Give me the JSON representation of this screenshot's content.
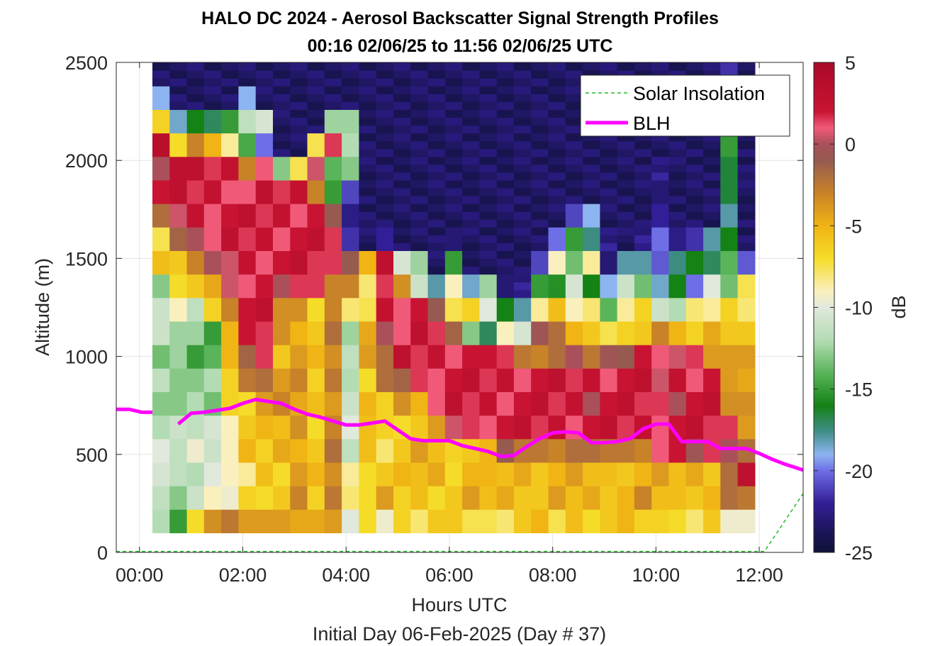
{
  "chart_data": {
    "type": "heatmap",
    "title": "HALO DC 2024 - Aerosol Backscatter Signal Strength Profiles",
    "subtitle": "00:16 02/06/25 to 11:56 02/06/25  UTC",
    "xlabel": "Hours UTC",
    "xlabel2": "Initial Day 06-Feb-2025 (Day # 37)",
    "ylabel": "Altitude (m)",
    "colorbar_label": "dB",
    "xlim": [
      -0.45,
      12.85
    ],
    "ylim": [
      0,
      2500
    ],
    "clim": [
      -25,
      5
    ],
    "x_ticks": [
      0,
      2,
      4,
      6,
      8,
      10,
      12
    ],
    "x_tick_labels": [
      "00:00",
      "02:00",
      "04:00",
      "06:00",
      "08:00",
      "10:00",
      "12:00"
    ],
    "y_ticks": [
      0,
      500,
      1000,
      1500,
      2000,
      2500
    ],
    "y_tick_labels": [
      "0",
      "500",
      "1000",
      "1500",
      "2000",
      "2500"
    ],
    "colorbar_ticks": [
      5,
      0,
      -5,
      -10,
      -15,
      -20,
      -25
    ],
    "colorbar_tick_labels": [
      "5",
      "0",
      "-5",
      "-10",
      "-15",
      "-20",
      "-25"
    ],
    "grid": true,
    "legend_placement": "top-right",
    "legend": [
      "Solar Insolation",
      "BLH"
    ],
    "colors": {
      "blh": "#ff00ff",
      "solar": "#22bb22"
    },
    "heatmap": {
      "x_start_hour": 0.25,
      "column_width_hours": 0.3333,
      "column_count": 35,
      "y_bottom_m": 100,
      "y_top_m": 2500,
      "row_height_m": 50,
      "note": "values in dB, column-wise profiles"
    },
    "columns": [
      {
        "hour": 0.42,
        "blh": 0,
        "q": [
          -11,
          -12,
          -10,
          -11,
          -12,
          -12,
          -12,
          -13,
          -12,
          -11,
          -12,
          -6,
          -7,
          -3,
          2,
          1,
          3,
          -6,
          -20,
          -24
        ]
      },
      {
        "hour": 0.75,
        "blh": 0,
        "q": [
          -15,
          -12,
          -12,
          -11,
          -12,
          -13,
          -12,
          -13,
          -12,
          -10,
          -7,
          -5,
          -2,
          1,
          2,
          3,
          -6,
          -19,
          -24,
          -24
        ]
      },
      {
        "hour": 1.08,
        "blh": 0,
        "q": [
          -8,
          -11,
          -11,
          -10,
          -11,
          -13,
          -13,
          -14,
          -13,
          -11,
          -7,
          -3,
          1,
          2,
          2,
          2,
          -3,
          -15,
          -24,
          -24
        ]
      },
      {
        "hour": 1.42,
        "blh": 0,
        "q": [
          -3,
          -10,
          -10,
          -10,
          -11,
          -13,
          -13,
          -14,
          -14,
          -7,
          -4,
          -1,
          1,
          2,
          2,
          2,
          -6,
          -17,
          -24,
          -24
        ]
      },
      {
        "hour": 1.75,
        "blh": 0,
        "q": [
          -3,
          -9,
          -10,
          -9,
          -8,
          -7,
          -6,
          -6,
          -5,
          -2,
          0,
          1,
          2,
          2,
          2,
          2,
          -8,
          -16,
          -24,
          -24
        ]
      },
      {
        "hour": 2.08,
        "blh": 0,
        "q": [
          -3,
          -7,
          -8,
          -6,
          -6,
          -6,
          -3,
          -1,
          1,
          2,
          2,
          2,
          2,
          2,
          1,
          -2,
          -15,
          -11,
          -20,
          -24
        ]
      },
      {
        "hour": 2.42,
        "blh": 0,
        "q": [
          -4,
          -6,
          -6,
          -6,
          -6,
          -4,
          -1,
          1,
          2,
          2,
          2,
          2,
          2,
          2,
          2,
          1,
          -19,
          -11,
          -24,
          -24
        ]
      },
      {
        "hour": 2.75,
        "blh": 0,
        "q": [
          -5,
          -6,
          -6,
          -5,
          -5,
          -4,
          -4,
          -5,
          -4,
          -3,
          -1,
          2,
          2,
          2,
          2,
          -14,
          -24,
          -24,
          -24,
          -24
        ]
      },
      {
        "hour": 3.08,
        "blh": 0,
        "q": [
          -4,
          -4,
          -4,
          -4,
          -4,
          -4,
          -4,
          -4,
          -4,
          -4,
          2,
          2,
          2,
          2,
          2,
          -7,
          -24,
          -24,
          -24,
          -24
        ]
      },
      {
        "hour": 3.42,
        "blh": 0,
        "q": [
          -5,
          -6,
          -6,
          -6,
          -6,
          -6,
          -6,
          -6,
          -6,
          -6,
          1,
          2,
          2,
          2,
          -2,
          0,
          -7,
          -24,
          -24,
          -24
        ]
      },
      {
        "hour": 3.75,
        "blh": 0,
        "q": [
          -3,
          -3,
          -3,
          -3,
          -3,
          -3,
          -3,
          -3,
          -3,
          -3,
          -2,
          1,
          2,
          -2,
          -15,
          -13,
          1,
          -12,
          -24,
          -24
        ]
      },
      {
        "hour": 4.08,
        "blh": 0,
        "q": [
          -10,
          -7,
          -9,
          -11,
          -11,
          -11,
          -11,
          -12,
          -12,
          -9,
          -3,
          0,
          -22,
          -22,
          -22,
          -13,
          -11,
          -13,
          -24,
          -24
        ]
      },
      {
        "hour": 4.42,
        "blh": 0,
        "q": [
          -8,
          -7,
          -6,
          -6,
          -5,
          -6,
          -7,
          -3,
          -5,
          -7,
          -9,
          -5,
          -24,
          -24,
          -24,
          -24,
          -24,
          -24,
          -24,
          -24
        ]
      },
      {
        "hour": 4.75,
        "blh": 0,
        "q": [
          -9,
          -5,
          -6,
          -7,
          -7,
          -6,
          -3,
          -2,
          1,
          2,
          2,
          2,
          -22,
          -24,
          -24,
          -24,
          -24,
          -24,
          -24,
          -24
        ]
      },
      {
        "hour": 5.08,
        "blh": 0,
        "q": [
          -7,
          -6,
          -6,
          -6,
          -6,
          -4,
          -1,
          2,
          1,
          2,
          -4,
          -10,
          -24,
          -24,
          -24,
          -24,
          -24,
          -24,
          -24,
          -24
        ]
      },
      {
        "hour": 5.42,
        "blh": 0,
        "q": [
          -7,
          -6,
          -5,
          -5,
          -6,
          -4,
          1,
          2,
          2,
          2,
          -10,
          -13,
          -24,
          -24,
          -24,
          -24,
          -24,
          -24,
          -24,
          -24
        ]
      },
      {
        "hour": 5.75,
        "blh": 0,
        "q": [
          -6,
          -6,
          -5,
          -5,
          -5,
          1,
          2,
          2,
          2,
          -2,
          -18,
          -24,
          -24,
          -24,
          -24,
          -24,
          -24,
          -24,
          -24,
          -24
        ]
      },
      {
        "hour": 6.08,
        "blh": 0,
        "q": [
          -7,
          -6,
          -6,
          -7,
          1,
          2,
          2,
          2,
          -2,
          -7,
          -10,
          -15,
          -22,
          -24,
          -24,
          -24,
          -24,
          -24,
          -24,
          -24
        ]
      },
      {
        "hour": 6.42,
        "blh": 0,
        "q": [
          -7,
          -5,
          -5,
          -5,
          1,
          2,
          2,
          2,
          -12,
          -7,
          -18,
          -24,
          -24,
          -24,
          -24,
          -24,
          -24,
          -24,
          -24,
          -24
        ]
      },
      {
        "hour": 6.75,
        "blh": 0,
        "q": [
          -8,
          -5,
          -6,
          -5,
          2,
          2,
          2,
          1,
          -17,
          -9,
          -13,
          -24,
          -24,
          -24,
          -24,
          -24,
          -24,
          -24,
          -24,
          -24
        ]
      },
      {
        "hour": 7.08,
        "blh": 0,
        "q": [
          -7,
          -5,
          -5,
          -2,
          2,
          2,
          2,
          2,
          -10,
          -16,
          -22,
          -24,
          -24,
          -24,
          -24,
          -24,
          -24,
          -24,
          -24,
          -24
        ]
      },
      {
        "hour": 7.42,
        "blh": 0,
        "q": [
          -6,
          -5,
          -5,
          -2,
          2,
          2,
          2,
          -3,
          -10,
          -19,
          -23,
          -24,
          -24,
          -24,
          -24,
          -24,
          -24,
          -24,
          -24,
          -24
        ]
      },
      {
        "hour": 7.75,
        "blh": 0,
        "q": [
          -6,
          -6,
          -5,
          -3,
          2,
          2,
          2,
          -2,
          -1,
          -8,
          -16,
          -21,
          -24,
          -24,
          -24,
          -24,
          -24,
          -24,
          -24,
          -24
        ]
      },
      {
        "hour": 8.08,
        "blh": 0,
        "q": [
          -7,
          -5,
          -5,
          -2,
          2,
          2,
          2,
          -2,
          -1,
          -6,
          -15,
          -10,
          -20,
          -24,
          -24,
          -24,
          -24,
          -24,
          -24,
          -24
        ]
      },
      {
        "hour": 8.42,
        "blh": 0,
        "q": [
          -6,
          -5,
          -5,
          -2,
          2,
          2,
          2,
          -1,
          -5,
          -8,
          -11,
          -13,
          -16,
          -21,
          -24,
          -24,
          -24,
          -24,
          -24,
          -24
        ]
      },
      {
        "hour": 8.75,
        "blh": 0,
        "q": [
          -6,
          -5,
          -5,
          -3,
          2,
          1,
          2,
          -2,
          -7,
          -8,
          -15,
          -9,
          -17,
          -20,
          -24,
          -24,
          -24,
          -24,
          -24,
          -24
        ]
      },
      {
        "hour": 9.08,
        "blh": 0,
        "q": [
          -6,
          -5,
          -6,
          -2,
          2,
          2,
          2,
          -1,
          -7,
          -15,
          -19,
          -22,
          -23,
          -24,
          -24,
          -24,
          -24,
          -24,
          -24,
          -24
        ]
      },
      {
        "hour": 9.42,
        "blh": 0,
        "q": [
          -6,
          -5,
          -5,
          -3,
          2,
          2,
          2,
          0,
          -7,
          -8,
          -12,
          -18,
          -24,
          -24,
          -24,
          -24,
          -24,
          -24,
          -24,
          -24
        ]
      },
      {
        "hour": 9.75,
        "blh": 0,
        "q": [
          -6,
          -4,
          -5,
          -2,
          2,
          2,
          2,
          2,
          -5,
          -7,
          -13,
          -19,
          -23,
          -24,
          -24,
          -24,
          -24,
          -24,
          -24,
          -24
        ]
      },
      {
        "hour": 10.08,
        "blh": 0,
        "q": [
          -7,
          -5,
          -5,
          1,
          2,
          1,
          1,
          0,
          -3,
          -10,
          -19,
          -20,
          -21,
          -22,
          -22,
          -23,
          -24,
          -24,
          -24,
          -24
        ]
      },
      {
        "hour": 10.42,
        "blh": 0,
        "q": [
          -6,
          -6,
          -5,
          1,
          2,
          1,
          2,
          1,
          -6,
          -12,
          -15,
          -18,
          -22,
          -24,
          -24,
          -24,
          -24,
          -24,
          -24,
          -24
        ]
      },
      {
        "hour": 10.75,
        "blh": 0,
        "q": [
          -8,
          -5,
          -5,
          0,
          2,
          2,
          2,
          1,
          -6,
          -9,
          -20,
          -15,
          -22,
          -24,
          -24,
          -24,
          -24,
          -24,
          -24,
          -24
        ]
      },
      {
        "hour": 11.08,
        "blh": 0,
        "q": [
          -7,
          -5,
          -5,
          1,
          2,
          2,
          2,
          -3,
          -5,
          -8,
          -11,
          -17,
          -17,
          -24,
          -24,
          -24,
          -24,
          -24,
          -24,
          -24
        ]
      },
      {
        "hour": 11.42,
        "blh": 0,
        "q": [
          -9,
          -3,
          -2,
          1,
          1,
          -3,
          -5,
          -4,
          -5,
          -7,
          -13,
          -15,
          -16,
          -17,
          -17,
          -16,
          -16,
          -20,
          -22,
          -22
        ]
      },
      {
        "hour": 11.75,
        "blh": 0,
        "q": [
          -10,
          -2,
          2,
          -2,
          -3,
          -4,
          -4,
          -5,
          -6,
          -7,
          -8,
          -20,
          -24,
          -24,
          -24,
          -24,
          -24,
          -24,
          -24,
          -24
        ]
      }
    ],
    "series": [
      {
        "name": "BLH",
        "x": [
          -0.45,
          -0.2,
          0.05,
          0.25,
          0.5,
          0.75,
          1.0,
          1.25,
          1.5,
          1.75,
          2.0,
          2.25,
          2.5,
          2.75,
          3.0,
          3.25,
          3.5,
          3.75,
          4.0,
          4.25,
          4.5,
          4.75,
          5.0,
          5.25,
          5.5,
          5.75,
          6.0,
          6.25,
          6.5,
          6.75,
          7.0,
          7.25,
          7.5,
          7.75,
          8.0,
          8.25,
          8.5,
          8.75,
          9.0,
          9.25,
          9.5,
          9.75,
          10.0,
          10.25,
          10.5,
          10.75,
          11.0,
          11.25,
          11.5,
          11.75,
          12.0,
          12.25,
          12.5,
          12.85
        ],
        "y": [
          730,
          730,
          715,
          715,
          null,
          655,
          710,
          715,
          725,
          735,
          760,
          780,
          770,
          760,
          730,
          705,
          690,
          670,
          650,
          650,
          660,
          670,
          625,
          580,
          570,
          570,
          570,
          545,
          530,
          515,
          490,
          495,
          540,
          580,
          610,
          615,
          610,
          560,
          560,
          565,
          580,
          630,
          655,
          655,
          565,
          565,
          565,
          530,
          530,
          530,
          505,
          475,
          450,
          420
        ]
      },
      {
        "name": "Solar Insolation",
        "x": [
          -0.45,
          12.1,
          12.85
        ],
        "y": [
          5,
          5,
          300
        ]
      }
    ]
  }
}
